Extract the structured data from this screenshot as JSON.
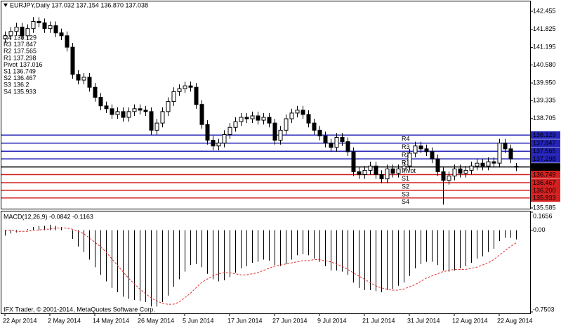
{
  "chart_data": [
    {
      "type": "candlestick",
      "header": "EURJPY,Daily 137.032 137.154 136.870 137.038",
      "categories": [
        "22 Apr 2014",
        null,
        null,
        null,
        null,
        null,
        null,
        null,
        "2 May 2014",
        null,
        null,
        null,
        null,
        null,
        null,
        null,
        "14 May 2014",
        null,
        null,
        null,
        null,
        null,
        null,
        null,
        "26 May 2014",
        null,
        null,
        null,
        null,
        null,
        null,
        null,
        "5 Jun 2014",
        null,
        null,
        null,
        null,
        null,
        null,
        null,
        "17 Jun 2014",
        null,
        null,
        null,
        null,
        null,
        null,
        null,
        "27 Jun 2014",
        null,
        null,
        null,
        null,
        null,
        null,
        null,
        "9 Jul 2014",
        null,
        null,
        null,
        null,
        null,
        null,
        null,
        "21 Jul 2014",
        null,
        null,
        null,
        null,
        null,
        null,
        null,
        "31 Jul 2014",
        null,
        null,
        null,
        null,
        null,
        null,
        null,
        "12 Aug 2014",
        null,
        null,
        null,
        null,
        null,
        null,
        null,
        "22 Aug 2014",
        null,
        null,
        null
      ],
      "open": [
        141.5,
        141.6,
        141.75,
        141.9,
        141.6,
        141.85,
        142.1,
        142.05,
        141.85,
        141.95,
        141.7,
        141.6,
        141.2,
        140.25,
        140.05,
        140.15,
        139.8,
        139.45,
        139.15,
        139.05,
        138.85,
        138.95,
        138.75,
        138.95,
        139.05,
        139.0,
        138.95,
        138.3,
        138.55,
        138.95,
        139.3,
        139.65,
        139.75,
        139.85,
        139.8,
        139.2,
        138.5,
        137.95,
        137.75,
        137.85,
        138.15,
        138.4,
        138.6,
        138.75,
        138.7,
        138.8,
        138.65,
        138.75,
        138.55,
        137.95,
        138.3,
        138.7,
        138.9,
        139.0,
        138.85,
        138.55,
        138.3,
        138.1,
        137.85,
        137.7,
        138.05,
        137.9,
        137.55,
        136.85,
        136.75,
        136.9,
        137.05,
        136.75,
        136.6,
        136.95,
        136.8,
        136.95,
        137.05,
        137.5,
        137.75,
        137.65,
        137.55,
        137.3,
        136.85,
        136.55,
        136.7,
        136.95,
        136.8,
        136.9,
        137.05,
        137.15,
        137.05,
        137.2,
        137.15,
        137.85,
        137.65,
        137.032
      ],
      "high": [
        141.75,
        141.9,
        142.05,
        142.05,
        142.0,
        142.25,
        142.25,
        142.2,
        142.1,
        142.1,
        141.85,
        141.75,
        141.35,
        140.4,
        140.3,
        140.3,
        139.95,
        139.6,
        139.3,
        139.2,
        139.1,
        139.1,
        139.1,
        139.2,
        139.2,
        139.15,
        139.1,
        138.7,
        139.1,
        139.45,
        139.8,
        139.9,
        140.0,
        140.0,
        139.95,
        139.35,
        138.65,
        138.1,
        138.0,
        138.3,
        138.55,
        138.75,
        138.9,
        138.9,
        138.95,
        138.95,
        138.9,
        138.9,
        138.7,
        138.45,
        138.85,
        139.05,
        139.15,
        139.15,
        139.0,
        138.7,
        138.45,
        138.25,
        138.0,
        138.2,
        138.2,
        138.05,
        137.7,
        137.0,
        137.05,
        137.2,
        137.2,
        136.9,
        137.1,
        137.1,
        137.1,
        137.2,
        137.65,
        137.9,
        137.9,
        137.8,
        137.7,
        137.45,
        137.0,
        136.85,
        137.1,
        137.1,
        137.05,
        137.2,
        137.3,
        137.3,
        137.35,
        137.35,
        138.0,
        138.0,
        137.8,
        137.154
      ],
      "low": [
        141.35,
        141.45,
        141.6,
        141.45,
        141.45,
        141.7,
        141.9,
        141.7,
        141.7,
        141.55,
        141.45,
        141.05,
        140.1,
        139.9,
        139.9,
        139.65,
        139.3,
        139.0,
        138.9,
        138.7,
        138.7,
        138.6,
        138.6,
        138.8,
        138.85,
        138.8,
        138.15,
        138.15,
        138.4,
        138.8,
        139.15,
        139.5,
        139.6,
        139.65,
        139.05,
        138.35,
        137.8,
        137.6,
        137.6,
        137.7,
        138.0,
        138.25,
        138.45,
        138.55,
        138.55,
        138.5,
        138.5,
        138.4,
        137.8,
        137.8,
        138.15,
        138.55,
        138.75,
        138.7,
        138.4,
        138.15,
        137.95,
        137.7,
        137.55,
        137.55,
        137.75,
        137.4,
        136.7,
        136.6,
        136.6,
        136.75,
        136.6,
        136.45,
        136.45,
        136.65,
        136.65,
        136.8,
        136.9,
        137.35,
        137.5,
        137.4,
        137.15,
        136.7,
        135.7,
        136.4,
        136.55,
        136.65,
        136.65,
        136.75,
        136.9,
        136.9,
        136.9,
        137.0,
        137.0,
        137.5,
        137.15,
        136.87
      ],
      "close": [
        141.6,
        141.75,
        141.9,
        141.6,
        141.85,
        142.1,
        142.05,
        141.85,
        141.95,
        141.7,
        141.6,
        141.2,
        140.25,
        140.05,
        140.15,
        139.8,
        139.45,
        139.15,
        139.05,
        138.85,
        138.95,
        138.75,
        138.95,
        139.05,
        139.0,
        138.95,
        138.3,
        138.55,
        138.95,
        139.3,
        139.65,
        139.75,
        139.85,
        139.8,
        139.2,
        138.5,
        137.95,
        137.75,
        137.85,
        138.15,
        138.4,
        138.6,
        138.75,
        138.7,
        138.8,
        138.65,
        138.75,
        138.55,
        137.95,
        138.3,
        138.7,
        138.9,
        139.0,
        138.85,
        138.55,
        138.3,
        138.1,
        137.85,
        137.7,
        138.05,
        137.9,
        137.55,
        136.85,
        136.75,
        136.9,
        137.05,
        136.75,
        136.6,
        136.95,
        136.8,
        136.95,
        137.05,
        137.5,
        137.75,
        137.65,
        137.55,
        137.3,
        136.85,
        136.55,
        136.7,
        136.95,
        136.8,
        136.9,
        137.05,
        137.15,
        137.05,
        137.2,
        137.15,
        137.85,
        137.65,
        137.3,
        137.038
      ],
      "up_color": "#ffffff",
      "down_color": "#000000",
      "outline_color": "#000000",
      "ylim": [
        135.56,
        142.75
      ],
      "yticks": [
        142.455,
        141.825,
        141.195,
        {
          "value": 140.58,
          "label": "140.580"
        },
        {
          "value": 139.95,
          "label": "139.950"
        },
        139.335,
        138.705,
        135.585
      ],
      "pivots": [
        {
          "name": "R4",
          "value": 138.129,
          "color": "#2424b8"
        },
        {
          "name": "R3",
          "value": 137.847,
          "color": "#2424b8"
        },
        {
          "name": "R2",
          "value": 137.565,
          "color": "#2424b8"
        },
        {
          "name": "R1",
          "value": 137.298,
          "color": "#2424b8"
        },
        {
          "name": "Pivot",
          "value": 137.016,
          "color": "#000000"
        },
        {
          "name": "S1",
          "value": 136.749,
          "color": "#d42020"
        },
        {
          "name": "S2",
          "value": 136.467,
          "color": "#d42020"
        },
        {
          "name": "S3",
          "value": 136.2,
          "color": "#d42020",
          "label": "136.200"
        },
        {
          "name": "S4",
          "value": 135.933,
          "color": "#d42020"
        }
      ],
      "pivot_text_color": "#c83a3a"
    },
    {
      "type": "macd",
      "title": "MACD(12,26,9) -0.0842 -0.1163",
      "footer": "IFX Trader, © 2001-2014, MetaQuotes Software Corp.",
      "series": [
        {
          "name": "MACD",
          "color": "#000000",
          "values": [
            -0.05,
            -0.03,
            -0.02,
            0.0,
            0.01,
            0.03,
            0.04,
            0.04,
            0.05,
            0.04,
            0.03,
            0.0,
            -0.08,
            -0.15,
            -0.2,
            -0.27,
            -0.34,
            -0.41,
            -0.47,
            -0.53,
            -0.57,
            -0.61,
            -0.63,
            -0.64,
            -0.65,
            -0.66,
            -0.7,
            -0.7,
            -0.66,
            -0.6,
            -0.52,
            -0.45,
            -0.38,
            -0.32,
            -0.31,
            -0.34,
            -0.4,
            -0.45,
            -0.47,
            -0.46,
            -0.43,
            -0.39,
            -0.35,
            -0.33,
            -0.3,
            -0.29,
            -0.27,
            -0.28,
            -0.32,
            -0.33,
            -0.31,
            -0.27,
            -0.23,
            -0.22,
            -0.23,
            -0.26,
            -0.29,
            -0.33,
            -0.37,
            -0.37,
            -0.38,
            -0.41,
            -0.48,
            -0.53,
            -0.55,
            -0.55,
            -0.56,
            -0.57,
            -0.55,
            -0.54,
            -0.51,
            -0.48,
            -0.42,
            -0.35,
            -0.31,
            -0.29,
            -0.29,
            -0.32,
            -0.37,
            -0.38,
            -0.37,
            -0.35,
            -0.33,
            -0.3,
            -0.26,
            -0.24,
            -0.2,
            -0.17,
            -0.1,
            -0.07,
            -0.07,
            -0.0842
          ]
        },
        {
          "name": "Signal",
          "color": "#e03030",
          "values": [
            0.0,
            0.0,
            -0.01,
            -0.01,
            -0.01,
            0.0,
            0.0,
            0.01,
            0.01,
            0.02,
            0.02,
            0.02,
            0.01,
            -0.01,
            -0.03,
            -0.07,
            -0.11,
            -0.15,
            -0.2,
            -0.26,
            -0.32,
            -0.38,
            -0.44,
            -0.49,
            -0.54,
            -0.58,
            -0.62,
            -0.65,
            -0.67,
            -0.68,
            -0.68,
            -0.66,
            -0.62,
            -0.58,
            -0.53,
            -0.48,
            -0.45,
            -0.42,
            -0.4,
            -0.39,
            -0.39,
            -0.4,
            -0.41,
            -0.41,
            -0.4,
            -0.39,
            -0.37,
            -0.35,
            -0.33,
            -0.32,
            -0.31,
            -0.3,
            -0.29,
            -0.28,
            -0.28,
            -0.27,
            -0.27,
            -0.28,
            -0.29,
            -0.31,
            -0.33,
            -0.36,
            -0.39,
            -0.42,
            -0.45,
            -0.48,
            -0.51,
            -0.53,
            -0.54,
            -0.55,
            -0.55,
            -0.54,
            -0.52,
            -0.5,
            -0.47,
            -0.44,
            -0.42,
            -0.4,
            -0.38,
            -0.37,
            -0.36,
            -0.36,
            -0.36,
            -0.35,
            -0.34,
            -0.32,
            -0.3,
            -0.27,
            -0.23,
            -0.19,
            -0.15,
            -0.1163
          ]
        }
      ],
      "ylim": [
        -0.7503,
        0.1656
      ],
      "yticks": [
        0.1656,
        {
          "value": 0,
          "label": "0.00"
        },
        -0.7503
      ]
    }
  ]
}
